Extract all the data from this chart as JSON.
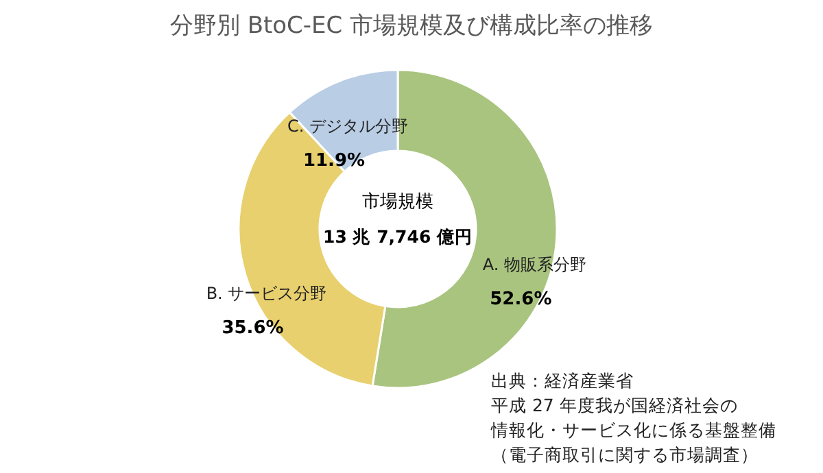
{
  "chart_data": {
    "type": "donut",
    "title": "分野別 BtoC-EC 市場規模及び構成比率の推移",
    "categories": [
      "A. 物販系分野",
      "B. サービス分野",
      "C. デジタル分野"
    ],
    "values": [
      52.6,
      35.6,
      11.9
    ],
    "colors": [
      "#a9c47f",
      "#e8d06e",
      "#b9cde5"
    ],
    "value_labels": [
      "52.6%",
      "35.6%",
      "11.9%"
    ],
    "annotations": [
      "市場規模",
      "13 兆 7,746 億円",
      "出典：経済産業省",
      "平成 27 年度我が国経済社会の",
      "情報化・サービス化に係る基盤整備",
      "（電子商取引に関する市場調査）"
    ],
    "legend": false
  }
}
